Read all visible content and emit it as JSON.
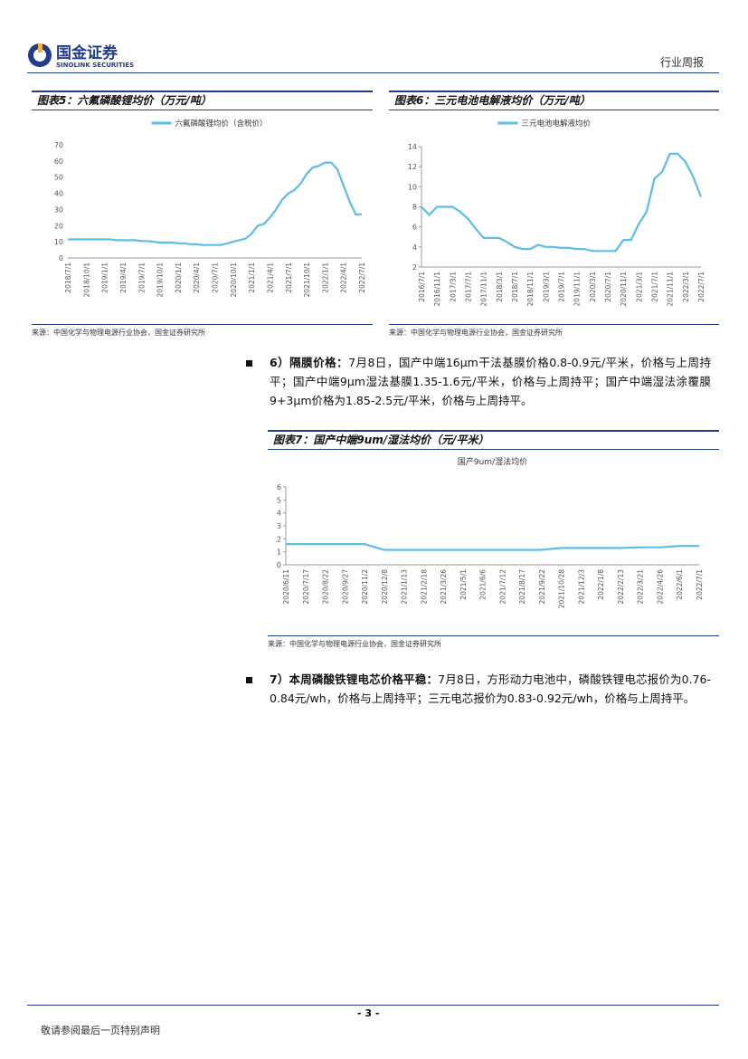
{
  "header": {
    "company_cn": "国金证券",
    "company_en": "SINOLINK SECURITIES",
    "report_type": "行业周报"
  },
  "chart_data": [
    {
      "type": "line",
      "title": "图表5：六氟磷酸锂均价（万元/吨）",
      "categories": [
        "2018/7/1",
        null,
        null,
        "2018/10/1",
        null,
        null,
        "2019/1/1",
        null,
        null,
        "2019/4/1",
        null,
        null,
        "2019/7/1",
        null,
        null,
        "2019/10/1",
        null,
        null,
        "2020/1/1",
        null,
        null,
        "2020/4/1",
        null,
        null,
        "2020/7/1",
        null,
        null,
        "2020/10/1",
        null,
        null,
        "2021/1/1",
        null,
        null,
        "2021/4/1",
        null,
        null,
        "2021/7/1",
        null,
        null,
        "2021/10/1",
        null,
        null,
        "2022/1/1",
        null,
        null,
        "2022/4/1",
        null,
        null,
        "2022/7/1"
      ],
      "series": [
        {
          "name": "六氟磷酸锂均价（含税价）",
          "color": "#5bbde9",
          "values": [
            11.5,
            11.5,
            11.5,
            11.5,
            11.5,
            11.5,
            11.5,
            11.5,
            11,
            11,
            11,
            11,
            10.5,
            10.5,
            10,
            9.5,
            9.5,
            9.5,
            9,
            9,
            8.5,
            8.5,
            8,
            8,
            8,
            8,
            9,
            10,
            11,
            12,
            15,
            20,
            21,
            25,
            30,
            36,
            40,
            42,
            46,
            52,
            56,
            57,
            59,
            59,
            55,
            45,
            35,
            27,
            27
          ]
        }
      ],
      "ylim": [
        0,
        70
      ],
      "yticks": [
        0,
        10,
        20,
        30,
        40,
        50,
        60,
        70
      ],
      "source": "来源：中国化学与物理电源行业协会，国金证券研究所"
    },
    {
      "type": "line",
      "title": "图表6：三元电池电解液均价（万元/吨）",
      "categories": [
        "2016/7/1",
        null,
        "2016/11/1",
        null,
        "2017/3/1",
        null,
        "2017/7/1",
        null,
        "2017/11/1",
        null,
        "2018/3/1",
        null,
        "2018/7/1",
        null,
        "2018/11/1",
        null,
        "2019/3/1",
        null,
        "2019/7/1",
        null,
        "2019/11/1",
        null,
        "2020/3/1",
        null,
        "2020/7/1",
        null,
        "2020/11/1",
        null,
        "2021/3/1",
        null,
        "2021/7/1",
        null,
        "2021/11/1",
        null,
        "2022/3/1",
        null,
        "2022/7/1"
      ],
      "series": [
        {
          "name": "三元电池电解液均价",
          "color": "#5bbde9",
          "values": [
            8,
            7.2,
            8,
            8,
            8,
            7.5,
            6.8,
            5.8,
            4.9,
            4.9,
            4.9,
            4.5,
            4.0,
            3.8,
            3.8,
            4.2,
            4.0,
            4.0,
            3.9,
            3.9,
            3.8,
            3.8,
            3.6,
            3.6,
            3.6,
            3.6,
            4.7,
            4.7,
            6.3,
            7.5,
            10.8,
            11.5,
            13.3,
            13.3,
            12.5,
            11,
            9
          ]
        }
      ],
      "ylim": [
        2,
        14
      ],
      "yticks": [
        2,
        4,
        6,
        8,
        10,
        12,
        14
      ],
      "axis_lines": true,
      "source": "来源：中国化学与物理电源行业协会，国金证券研究所"
    },
    {
      "type": "line",
      "title": "图表7：国产中端9um/湿法均价（元/平米）",
      "subtitle": "国产9um/湿法均价",
      "categories": [
        "2020/6/11",
        "2020/7/17",
        "2020/8/22",
        "2020/9/27",
        "2020/11/2",
        "2020/12/8",
        "2021/1/13",
        "2021/2/18",
        "2021/3/26",
        "2021/5/1",
        "2021/6/6",
        "2021/7/12",
        "2021/8/17",
        "2021/9/22",
        "2021/10/28",
        "2021/12/3",
        "2022/1/8",
        "2022/2/13",
        "2022/3/21",
        "2022/4/26",
        "2022/6/1",
        "2022/7/1"
      ],
      "values": [
        1.6,
        1.6,
        1.6,
        1.6,
        1.6,
        1.15,
        1.15,
        1.15,
        1.15,
        1.15,
        1.15,
        1.15,
        1.15,
        1.15,
        1.3,
        1.3,
        1.3,
        1.3,
        1.35,
        1.35,
        1.45,
        1.45
      ],
      "color": "#5bbde9",
      "ylim": [
        0,
        6
      ],
      "yticks": [
        0,
        1,
        2,
        3,
        4,
        5,
        6
      ],
      "axis_lines": true,
      "source": "来源：中国化学与物理电源行业协会，国金证券研究所"
    }
  ],
  "bullets": [
    {
      "lead": "6）隔膜价格：",
      "text": "7月8日，国产中端16μm干法基膜价格0.8-0.9元/平米，价格与上周持平；国产中端9μm湿法基膜1.35-1.6元/平米，价格与上周持平；国产中端湿法涂覆膜9+3μm价格为1.85-2.5元/平米，价格与上周持平。"
    },
    {
      "lead": "7）本周磷酸铁锂电芯价格平稳：",
      "text": "7月8日，方形动力电池中，磷酸铁锂电芯报价为0.76-0.84元/wh，价格与上周持平；三元电芯报价为0.83-0.92元/wh，价格与上周持平。"
    }
  ],
  "footer": {
    "page": "- 3 -",
    "disclaimer": "敬请参阅最后一页特别声明"
  }
}
